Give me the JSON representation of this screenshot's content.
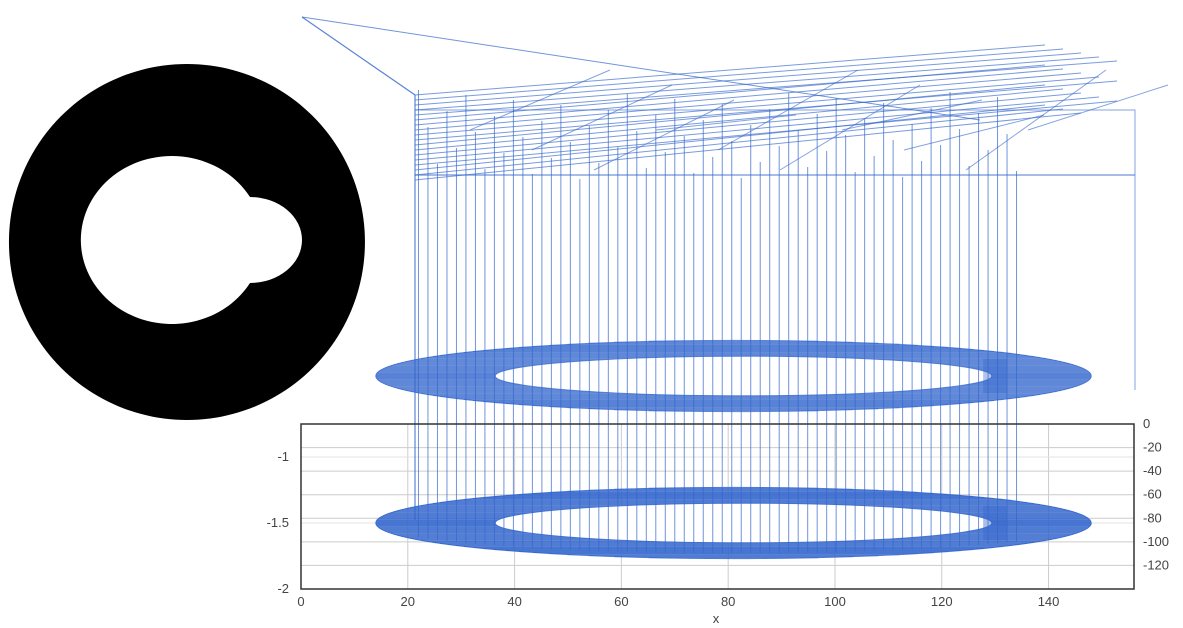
{
  "colors": {
    "series": "#3366cc",
    "grid": "#cccccc",
    "frame": "#333333",
    "glyph": "#000000",
    "background": "#ffffff"
  },
  "chart_data": {
    "type": "line",
    "title": "",
    "xlabel": "x",
    "ylabel": "",
    "xlim": [
      0,
      156
    ],
    "ylim": [
      -2,
      -0.75
    ],
    "y2lim": [
      -140,
      0
    ],
    "x_ticks": [
      "0",
      "20",
      "40",
      "60",
      "80",
      "100",
      "120",
      "140"
    ],
    "x_tick_values": [
      0,
      20,
      40,
      60,
      80,
      100,
      120,
      140
    ],
    "y_ticks": [
      "-1",
      "-1.5",
      "-2"
    ],
    "y_tick_values": [
      -1,
      -1.5,
      -2
    ],
    "y2_ticks": [
      "0",
      "-20",
      "-40",
      "-60",
      "-80",
      "-100",
      "-120"
    ],
    "y2_tick_values": [
      0,
      -20,
      -40,
      -60,
      -80,
      -100,
      -120
    ],
    "grid": true,
    "legend": "none",
    "glyph_image": "black-ring-with-notch-glyph",
    "series": [
      {
        "shape": "notched-ring",
        "center_x": 81,
        "center_y": -1.5,
        "outer_radius_x": 67,
        "outer_radius_y": 0.27,
        "inner_radius_x": 30,
        "inner_radius_y": 0.12,
        "notch_x": 130,
        "verticals_from_y": -1.15,
        "vertical_count": 64
      }
    ]
  }
}
